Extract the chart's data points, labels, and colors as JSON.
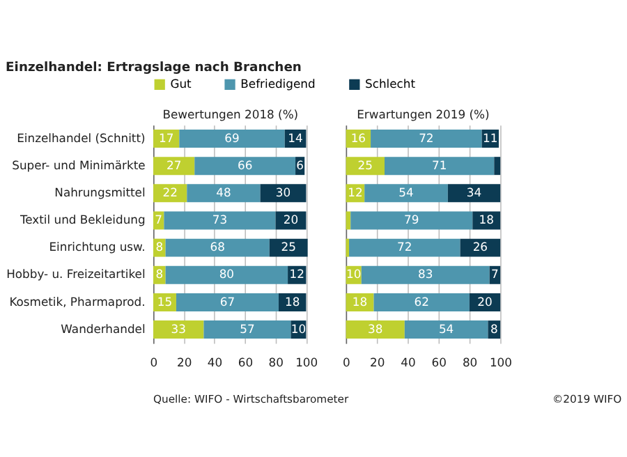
{
  "chart_data": [
    {
      "type": "bar",
      "orientation": "horizontal",
      "stacked": true,
      "title": "Einzelhandel: Ertragslage nach Branchen",
      "subtitle": "Bewertungen 2018 (%)",
      "categories": [
        "Einzelhandel (Schnitt)",
        "Super- und Minimärkte",
        "Nahrungsmittel",
        "Textil und Bekleidung",
        "Einrichtung usw.",
        "Hobby- u. Freizeitartikel",
        "Kosmetik, Pharmaprod.",
        "Wanderhandel"
      ],
      "series": [
        {
          "name": "Gut",
          "color": "#bfd030",
          "values": [
            17,
            27,
            22,
            7,
            8,
            8,
            15,
            33
          ]
        },
        {
          "name": "Befriedigend",
          "color": "#4e96ae",
          "values": [
            69,
            66,
            48,
            73,
            68,
            80,
            67,
            57
          ]
        },
        {
          "name": "Schlecht",
          "color": "#0c3b53",
          "values": [
            14,
            6,
            30,
            20,
            25,
            12,
            18,
            10
          ]
        }
      ],
      "data_labels": true,
      "xlim": [
        0,
        101
      ],
      "xticks": [
        0,
        20,
        40,
        60,
        80,
        100
      ],
      "grid": "x",
      "legend": "top"
    },
    {
      "type": "bar",
      "orientation": "horizontal",
      "stacked": true,
      "subtitle": "Erwartungen 2019 (%)",
      "categories": [
        "Einzelhandel (Schnitt)",
        "Super- und Minimärkte",
        "Nahrungsmittel",
        "Textil und Bekleidung",
        "Einrichtung usw.",
        "Hobby- u. Freizeitartikel",
        "Kosmetik, Pharmaprod.",
        "Wanderhandel"
      ],
      "series": [
        {
          "name": "Gut",
          "color": "#bfd030",
          "values": [
            16,
            25,
            12,
            3,
            2,
            10,
            18,
            38
          ],
          "value_labels": [
            "16",
            "25",
            "12",
            null,
            null,
            "10",
            "18",
            "38"
          ]
        },
        {
          "name": "Befriedigend",
          "color": "#4e96ae",
          "values": [
            72,
            71,
            54,
            79,
            72,
            83,
            62,
            54
          ],
          "value_labels": [
            "72",
            "71",
            "54",
            "79",
            "72",
            "83",
            "62",
            "54"
          ]
        },
        {
          "name": "Schlecht",
          "color": "#0c3b53",
          "values": [
            11,
            4,
            34,
            18,
            26,
            7,
            20,
            8
          ],
          "value_labels": [
            "11",
            null,
            "34",
            "18",
            "26",
            "7",
            "20",
            "8"
          ]
        }
      ],
      "xlim": [
        0,
        100
      ],
      "xticks": [
        0,
        20,
        40,
        60,
        80,
        100
      ],
      "grid": "x",
      "tick_labels": "x",
      "annotations": [
        "Quelle: WIFO - Wirtschaftsbarometer",
        "©2019 WIFO"
      ]
    }
  ]
}
